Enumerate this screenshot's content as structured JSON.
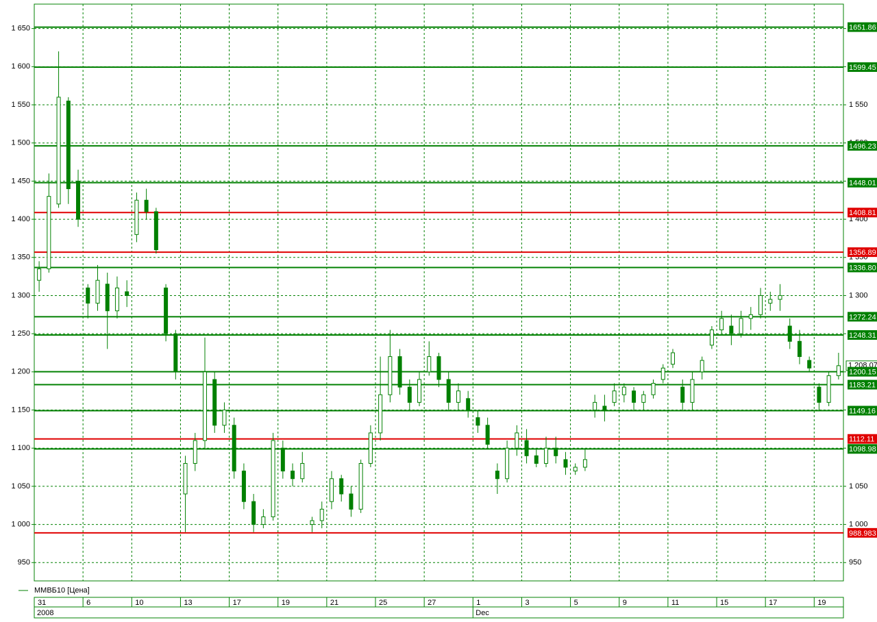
{
  "chart_data": {
    "type": "candlestick",
    "series": [
      {
        "name": "ММВБ10 [Цена]",
        "color": "#008000",
        "open": [
          1320,
          1335,
          1420,
          1555,
          1450,
          1310,
          1290,
          1315,
          1280,
          1305,
          1380,
          1425,
          1410,
          1310,
          1250,
          1040,
          1080,
          1110,
          1190,
          1130,
          1130,
          1070,
          1030,
          1000,
          1010,
          1100,
          1070,
          1060,
          1000,
          1005,
          1030,
          1060,
          1040,
          1020,
          1080,
          1120,
          1170,
          1220,
          1180,
          1160,
          1200,
          1220,
          1190,
          1160,
          1165,
          1140,
          1130,
          1070,
          1060,
          1100,
          1110,
          1090,
          1080,
          1100,
          1085,
          1070,
          1075,
          1150,
          1155,
          1160,
          1170,
          1175,
          1160,
          1170,
          1190,
          1210,
          1180,
          1160,
          1200,
          1235,
          1255,
          1260,
          1250,
          1270,
          1275,
          1290,
          1295,
          1260,
          1240,
          1215,
          1180,
          1160,
          1195
        ],
        "high": [
          1345,
          1460,
          1620,
          1560,
          1465,
          1315,
          1340,
          1330,
          1325,
          1320,
          1435,
          1440,
          1415,
          1315,
          1255,
          1090,
          1120,
          1245,
          1200,
          1160,
          1140,
          1080,
          1040,
          1020,
          1120,
          1110,
          1080,
          1095,
          1010,
          1030,
          1070,
          1065,
          1050,
          1085,
          1130,
          1220,
          1255,
          1230,
          1190,
          1200,
          1240,
          1225,
          1200,
          1185,
          1175,
          1150,
          1140,
          1080,
          1110,
          1130,
          1125,
          1100,
          1115,
          1115,
          1095,
          1080,
          1100,
          1170,
          1170,
          1185,
          1185,
          1180,
          1175,
          1190,
          1210,
          1230,
          1190,
          1200,
          1220,
          1260,
          1280,
          1275,
          1280,
          1285,
          1310,
          1305,
          1315,
          1270,
          1255,
          1220,
          1185,
          1200,
          1225
        ],
        "low": [
          1305,
          1330,
          1415,
          1420,
          1390,
          1270,
          1280,
          1230,
          1270,
          1285,
          1370,
          1400,
          1355,
          1240,
          1190,
          990,
          1070,
          1100,
          1120,
          1120,
          1060,
          1020,
          990,
          995,
          1005,
          1060,
          1050,
          1055,
          990,
          995,
          1020,
          1030,
          1010,
          1015,
          1075,
          1110,
          1160,
          1170,
          1150,
          1155,
          1195,
          1180,
          1150,
          1150,
          1140,
          1120,
          1100,
          1040,
          1055,
          1090,
          1080,
          1075,
          1075,
          1080,
          1065,
          1065,
          1070,
          1140,
          1135,
          1155,
          1160,
          1150,
          1150,
          1165,
          1185,
          1205,
          1150,
          1150,
          1190,
          1230,
          1250,
          1235,
          1245,
          1255,
          1270,
          1280,
          1280,
          1230,
          1210,
          1200,
          1150,
          1155,
          1190
        ],
        "close": [
          1335,
          1430,
          1560,
          1440,
          1400,
          1290,
          1320,
          1280,
          1310,
          1300,
          1425,
          1410,
          1360,
          1250,
          1200,
          1080,
          1110,
          1200,
          1130,
          1150,
          1070,
          1030,
          1000,
          1010,
          1110,
          1070,
          1060,
          1080,
          1005,
          1020,
          1060,
          1040,
          1020,
          1080,
          1120,
          1170,
          1220,
          1180,
          1160,
          1190,
          1220,
          1190,
          1160,
          1175,
          1150,
          1130,
          1105,
          1060,
          1100,
          1120,
          1090,
          1080,
          1100,
          1090,
          1075,
          1075,
          1085,
          1160,
          1150,
          1175,
          1180,
          1160,
          1170,
          1185,
          1205,
          1225,
          1160,
          1190,
          1215,
          1255,
          1270,
          1250,
          1270,
          1275,
          1300,
          1295,
          1300,
          1240,
          1220,
          1205,
          1160,
          1195,
          1208.07
        ]
      }
    ],
    "last_price_label": "1 208.07",
    "categories": [
      "31",
      null,
      null,
      null,
      null,
      "6",
      null,
      null,
      null,
      null,
      "10",
      null,
      null,
      null,
      null,
      "13",
      null,
      null,
      null,
      null,
      "17",
      null,
      null,
      null,
      null,
      "19",
      null,
      null,
      null,
      null,
      "21",
      null,
      null,
      null,
      null,
      "25",
      null,
      null,
      null,
      null,
      "27",
      null,
      null,
      null,
      null,
      "1",
      null,
      null,
      null,
      null,
      "3",
      null,
      null,
      null,
      null,
      "5",
      null,
      null,
      null,
      null,
      "9",
      null,
      null,
      null,
      null,
      "11",
      null,
      null,
      null,
      null,
      "15",
      null,
      null,
      null,
      null,
      "17",
      null,
      null,
      null,
      null,
      "19",
      null,
      null
    ],
    "periods": [
      "2008",
      null,
      null,
      null,
      null,
      null,
      null,
      null,
      null,
      null,
      null,
      null,
      null,
      null,
      null,
      null,
      null,
      null,
      null,
      null,
      null,
      null,
      null,
      null,
      null,
      null,
      null,
      null,
      null,
      null,
      null,
      null,
      null,
      null,
      null,
      null,
      null,
      null,
      null,
      null,
      null,
      null,
      null,
      null,
      null,
      "Dec",
      null,
      null,
      null,
      null,
      null,
      null,
      null,
      null,
      null,
      null,
      null,
      null,
      null,
      null,
      null,
      null,
      null,
      null,
      null,
      null,
      null,
      null,
      null,
      null,
      null,
      null,
      null,
      null,
      null,
      null,
      null,
      null,
      null,
      null,
      null,
      null,
      null
    ],
    "ylim": [
      926,
      1682
    ],
    "yticks": [
      950,
      {
        "value": 1000,
        "label": "1 000"
      },
      {
        "value": 1050,
        "label": "1 050"
      },
      {
        "value": 1100,
        "label": "1 100"
      },
      {
        "value": 1150,
        "label": "1 150"
      },
      {
        "value": 1200,
        "label": "1 200"
      },
      {
        "value": 1250,
        "label": "1 250"
      },
      {
        "value": 1300,
        "label": "1 300"
      },
      {
        "value": 1350,
        "label": "1 350"
      },
      {
        "value": 1400,
        "label": "1 400"
      },
      {
        "value": 1450,
        "label": "1 450"
      },
      {
        "value": 1500,
        "label": "1 500"
      },
      {
        "value": 1550,
        "label": "1 550"
      },
      {
        "value": 1600,
        "label": "1 600"
      },
      {
        "value": 1650,
        "label": "1 650"
      }
    ],
    "grid": true,
    "levels": [
      {
        "value": 1651.86,
        "label": "1651.86",
        "color": "#008000"
      },
      {
        "value": 1599.45,
        "label": "1599.45",
        "color": "#008000"
      },
      {
        "value": 1496.23,
        "label": "1496.23",
        "color": "#008000"
      },
      {
        "value": 1448.01,
        "label": "1448.01",
        "color": "#008000"
      },
      {
        "value": 1408.81,
        "label": "1408.81",
        "color": "#e00000"
      },
      {
        "value": 1356.89,
        "label": "1356.89",
        "color": "#e00000"
      },
      {
        "value": 1336.8,
        "label": "1336.80",
        "color": "#008000"
      },
      {
        "value": 1272.24,
        "label": "1272.24",
        "color": "#008000"
      },
      {
        "value": 1248.31,
        "label": "1248.31",
        "color": "#008000"
      },
      {
        "value": 1200.15,
        "label": "1200.15",
        "color": "#008000"
      },
      {
        "value": 1183.21,
        "label": "1183.21",
        "color": "#008000"
      },
      {
        "value": 1149.16,
        "label": "1149.16",
        "color": "#008000"
      },
      {
        "value": 1112.11,
        "label": "1112.11",
        "color": "#e00000"
      },
      {
        "value": 1098.98,
        "label": "1098.98",
        "color": "#008000"
      },
      {
        "value": 988.983,
        "label": "988.983",
        "color": "#e00000"
      }
    ]
  }
}
